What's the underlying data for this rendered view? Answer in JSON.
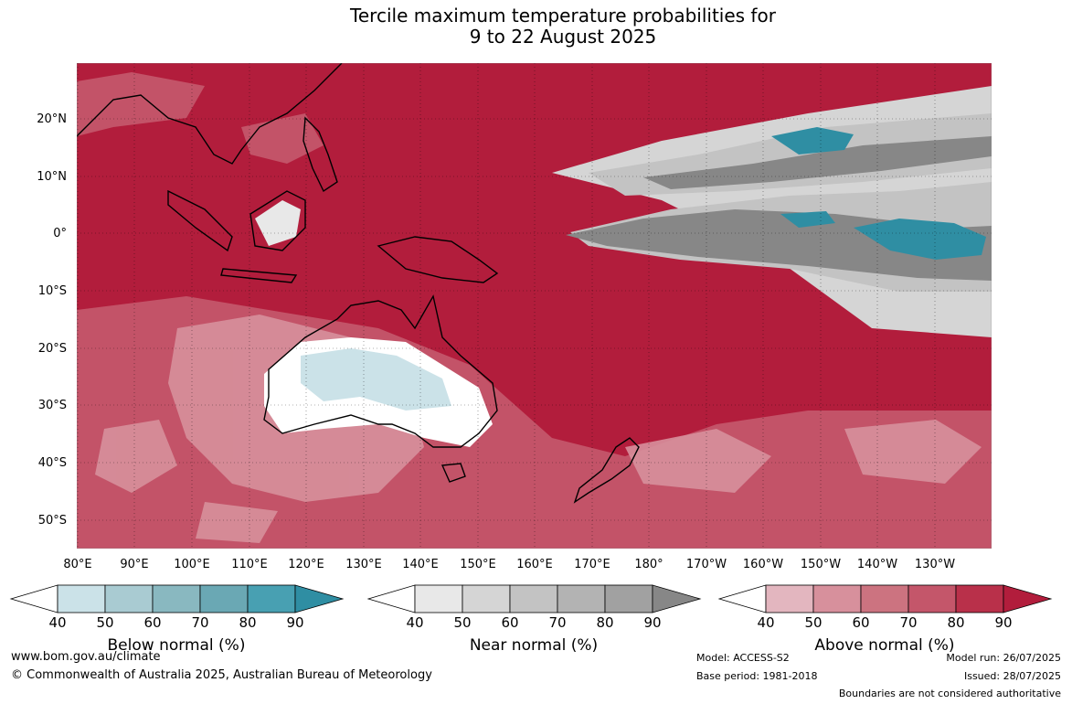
{
  "title": {
    "line1": "Tercile maximum temperature probabilities for",
    "line2": "9 to 22 August 2025"
  },
  "lat_labels": [
    "20°N",
    "10°N",
    "0°",
    "10°S",
    "20°S",
    "30°S",
    "40°S",
    "50°S"
  ],
  "lon_labels": [
    "80°E",
    "90°E",
    "100°E",
    "110°E",
    "120°E",
    "130°E",
    "140°E",
    "150°E",
    "160°E",
    "170°E",
    "180°",
    "170°W",
    "160°W",
    "150°W",
    "140°W",
    "130°W"
  ],
  "colorbars": [
    {
      "label": "Below normal (%)",
      "ticks": [
        "40",
        "50",
        "60",
        "70",
        "80",
        "90"
      ],
      "colors": [
        "#ffffff",
        "#cbe2e8",
        "#a9cbd2",
        "#89b8c0",
        "#6aa8b4",
        "#48a0b2",
        "#2f8ea3"
      ]
    },
    {
      "label": "Near normal (%)",
      "ticks": [
        "40",
        "50",
        "60",
        "70",
        "80",
        "90"
      ],
      "colors": [
        "#ffffff",
        "#e8e8e8",
        "#d5d5d5",
        "#c3c3c3",
        "#b3b3b3",
        "#a1a1a1",
        "#878787"
      ]
    },
    {
      "label": "Above normal (%)",
      "ticks": [
        "40",
        "50",
        "60",
        "70",
        "80",
        "90"
      ],
      "colors": [
        "#ffffff",
        "#e3b6bf",
        "#d7909c",
        "#cc7380",
        "#c4566a",
        "#b9304a",
        "#b21d3c"
      ]
    }
  ],
  "footer": {
    "website": "www.bom.gov.au/climate",
    "copyright": "© Commonwealth of Australia 2025, Australian Bureau of Meteorology",
    "model": "Model: ACCESS-S2",
    "base_period": "Base period: 1981-2018",
    "model_run": "Model run: 26/07/2025",
    "issued": "Issued: 28/07/2025",
    "disclaimer": "Boundaries are not considered authoritative"
  }
}
